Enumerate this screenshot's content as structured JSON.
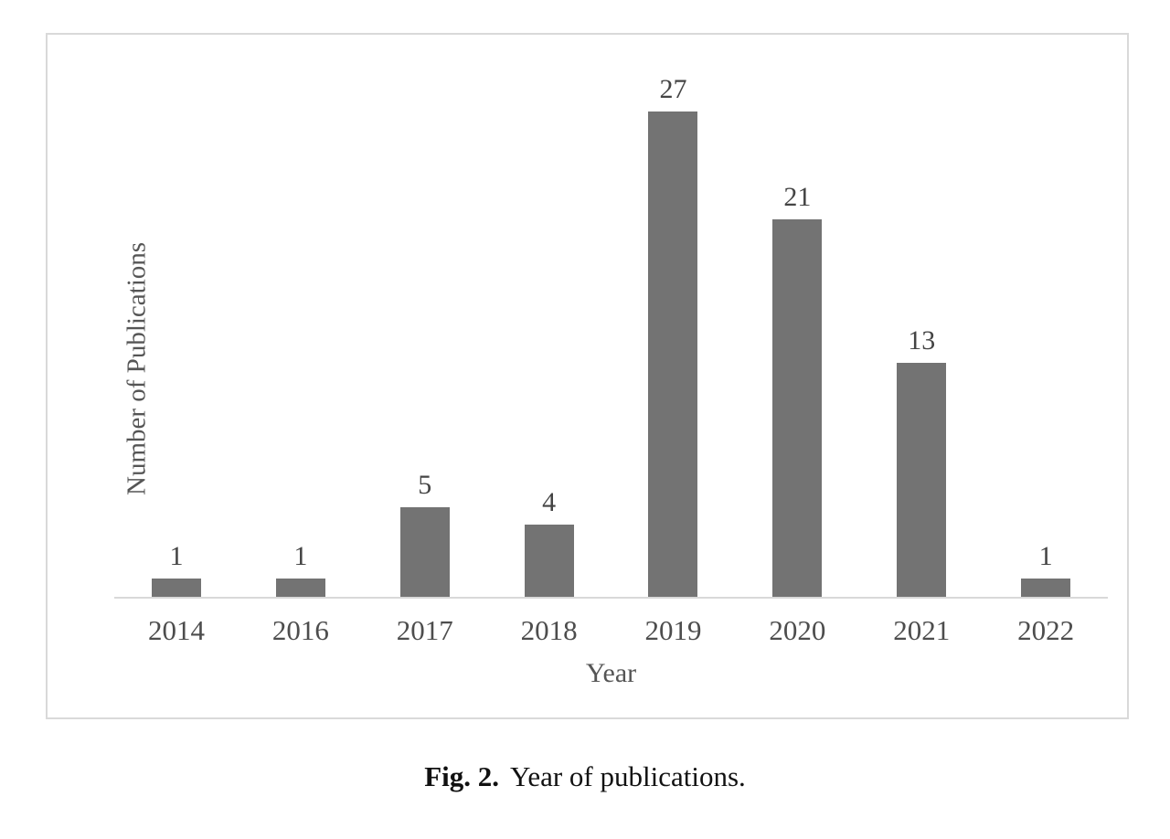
{
  "chart_data": {
    "type": "bar",
    "categories": [
      "2014",
      "2016",
      "2017",
      "2018",
      "2019",
      "2020",
      "2021",
      "2022"
    ],
    "values": [
      1,
      1,
      5,
      4,
      27,
      21,
      13,
      1
    ],
    "title": "",
    "xlabel": "Year",
    "ylabel": "Number of Publications",
    "ylim": [
      0,
      28
    ],
    "grid": false,
    "legend": false,
    "data_labels": true,
    "bar_color": "#737373",
    "axis_line_color": "#d9d9d9",
    "label_color": "#444444",
    "frame_border_color": "#d9d9d9"
  },
  "caption": {
    "fig_label": "Fig. 2.",
    "text": "Year of publications."
  }
}
